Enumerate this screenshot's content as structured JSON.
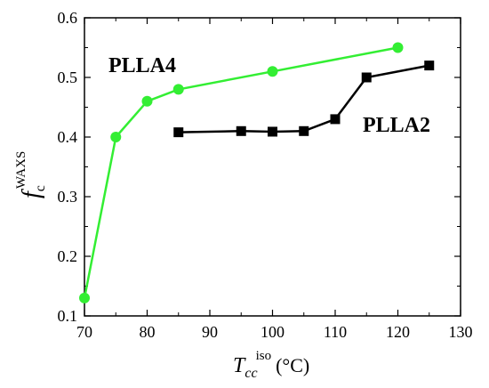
{
  "chart_data": {
    "type": "line",
    "xlabel": {
      "main": "T",
      "sub": "cc",
      "sup": "iso",
      "unit": "(°C)"
    },
    "ylabel": {
      "main": "f",
      "sub": "c",
      "sup": "WAXS"
    },
    "xlim": [
      70,
      130
    ],
    "ylim": [
      0.1,
      0.6
    ],
    "xticks": [
      70,
      80,
      90,
      100,
      110,
      120,
      130
    ],
    "yticks": [
      0.1,
      0.2,
      0.3,
      0.4,
      0.5,
      0.6
    ],
    "xtick_labels": [
      "70",
      "80",
      "90",
      "100",
      "110",
      "120",
      "130"
    ],
    "ytick_labels": [
      "0.1",
      "0.2",
      "0.3",
      "0.4",
      "0.5",
      "0.6"
    ],
    "grid": false,
    "series": [
      {
        "name": "PLLA4",
        "marker": "circle",
        "color": "#33ee33",
        "x": [
          70,
          75,
          80,
          85,
          100,
          120
        ],
        "y": [
          0.13,
          0.4,
          0.46,
          0.48,
          0.51,
          0.55
        ]
      },
      {
        "name": "PLLA2",
        "marker": "square",
        "color": "#000000",
        "x": [
          85,
          95,
          100,
          105,
          110,
          115,
          125
        ],
        "y": [
          0.408,
          0.41,
          0.409,
          0.41,
          0.43,
          0.5,
          0.52
        ]
      }
    ]
  }
}
